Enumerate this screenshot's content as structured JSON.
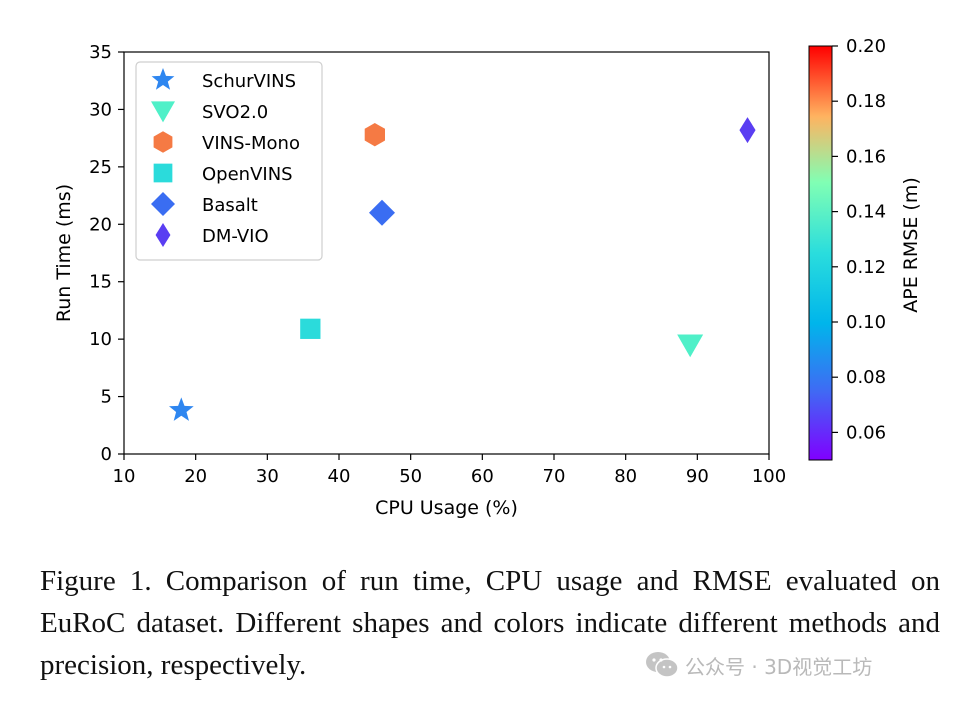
{
  "chart_data": {
    "type": "scatter",
    "xlabel": "CPU Usage (%)",
    "ylabel": "Run Time (ms)",
    "xlim": [
      10,
      100
    ],
    "ylim": [
      0,
      35
    ],
    "xticks": [
      10,
      20,
      30,
      40,
      50,
      60,
      70,
      80,
      90,
      100
    ],
    "yticks": [
      0,
      5,
      10,
      15,
      20,
      25,
      30,
      35
    ],
    "grid": false,
    "legend_position": "top-left",
    "colorbar": {
      "label": "APE RMSE (m)",
      "range": [
        0.05,
        0.2
      ],
      "ticks": [
        0.06,
        0.08,
        0.1,
        0.12,
        0.14,
        0.16,
        0.18,
        0.2
      ],
      "tick_labels": [
        "0.06",
        "0.08",
        "0.10",
        "0.12",
        "0.14",
        "0.16",
        "0.18",
        "0.20"
      ]
    },
    "points": [
      {
        "name": "SchurVINS",
        "marker": "star",
        "x": 18,
        "y": 3.8,
        "rmse": 0.076,
        "color": "#2e86f0"
      },
      {
        "name": "SVO2.0",
        "marker": "triangle-down",
        "x": 89,
        "y": 9.5,
        "rmse": 0.112,
        "color": "#4ff0c8"
      },
      {
        "name": "VINS-Mono",
        "marker": "hexagon",
        "x": 45,
        "y": 27.8,
        "rmse": 0.168,
        "color": "#f57a44"
      },
      {
        "name": "OpenVINS",
        "marker": "square",
        "x": 36,
        "y": 10.9,
        "rmse": 0.1,
        "color": "#2bdbdb"
      },
      {
        "name": "Basalt",
        "marker": "diamond",
        "x": 46,
        "y": 21.0,
        "rmse": 0.074,
        "color": "#3a6df2"
      },
      {
        "name": "DM-VIO",
        "marker": "thin-diamond",
        "x": 97,
        "y": 28.2,
        "rmse": 0.062,
        "color": "#5a3ef2"
      }
    ]
  },
  "caption": "Figure 1.  Comparison of run time, CPU usage and RMSE evaluated on EuRoC dataset.  Different shapes and colors indicate different methods and precision, respectively.",
  "watermark": {
    "text": "公众号 · 3D视觉工坊",
    "icon": "wechat-icon"
  }
}
